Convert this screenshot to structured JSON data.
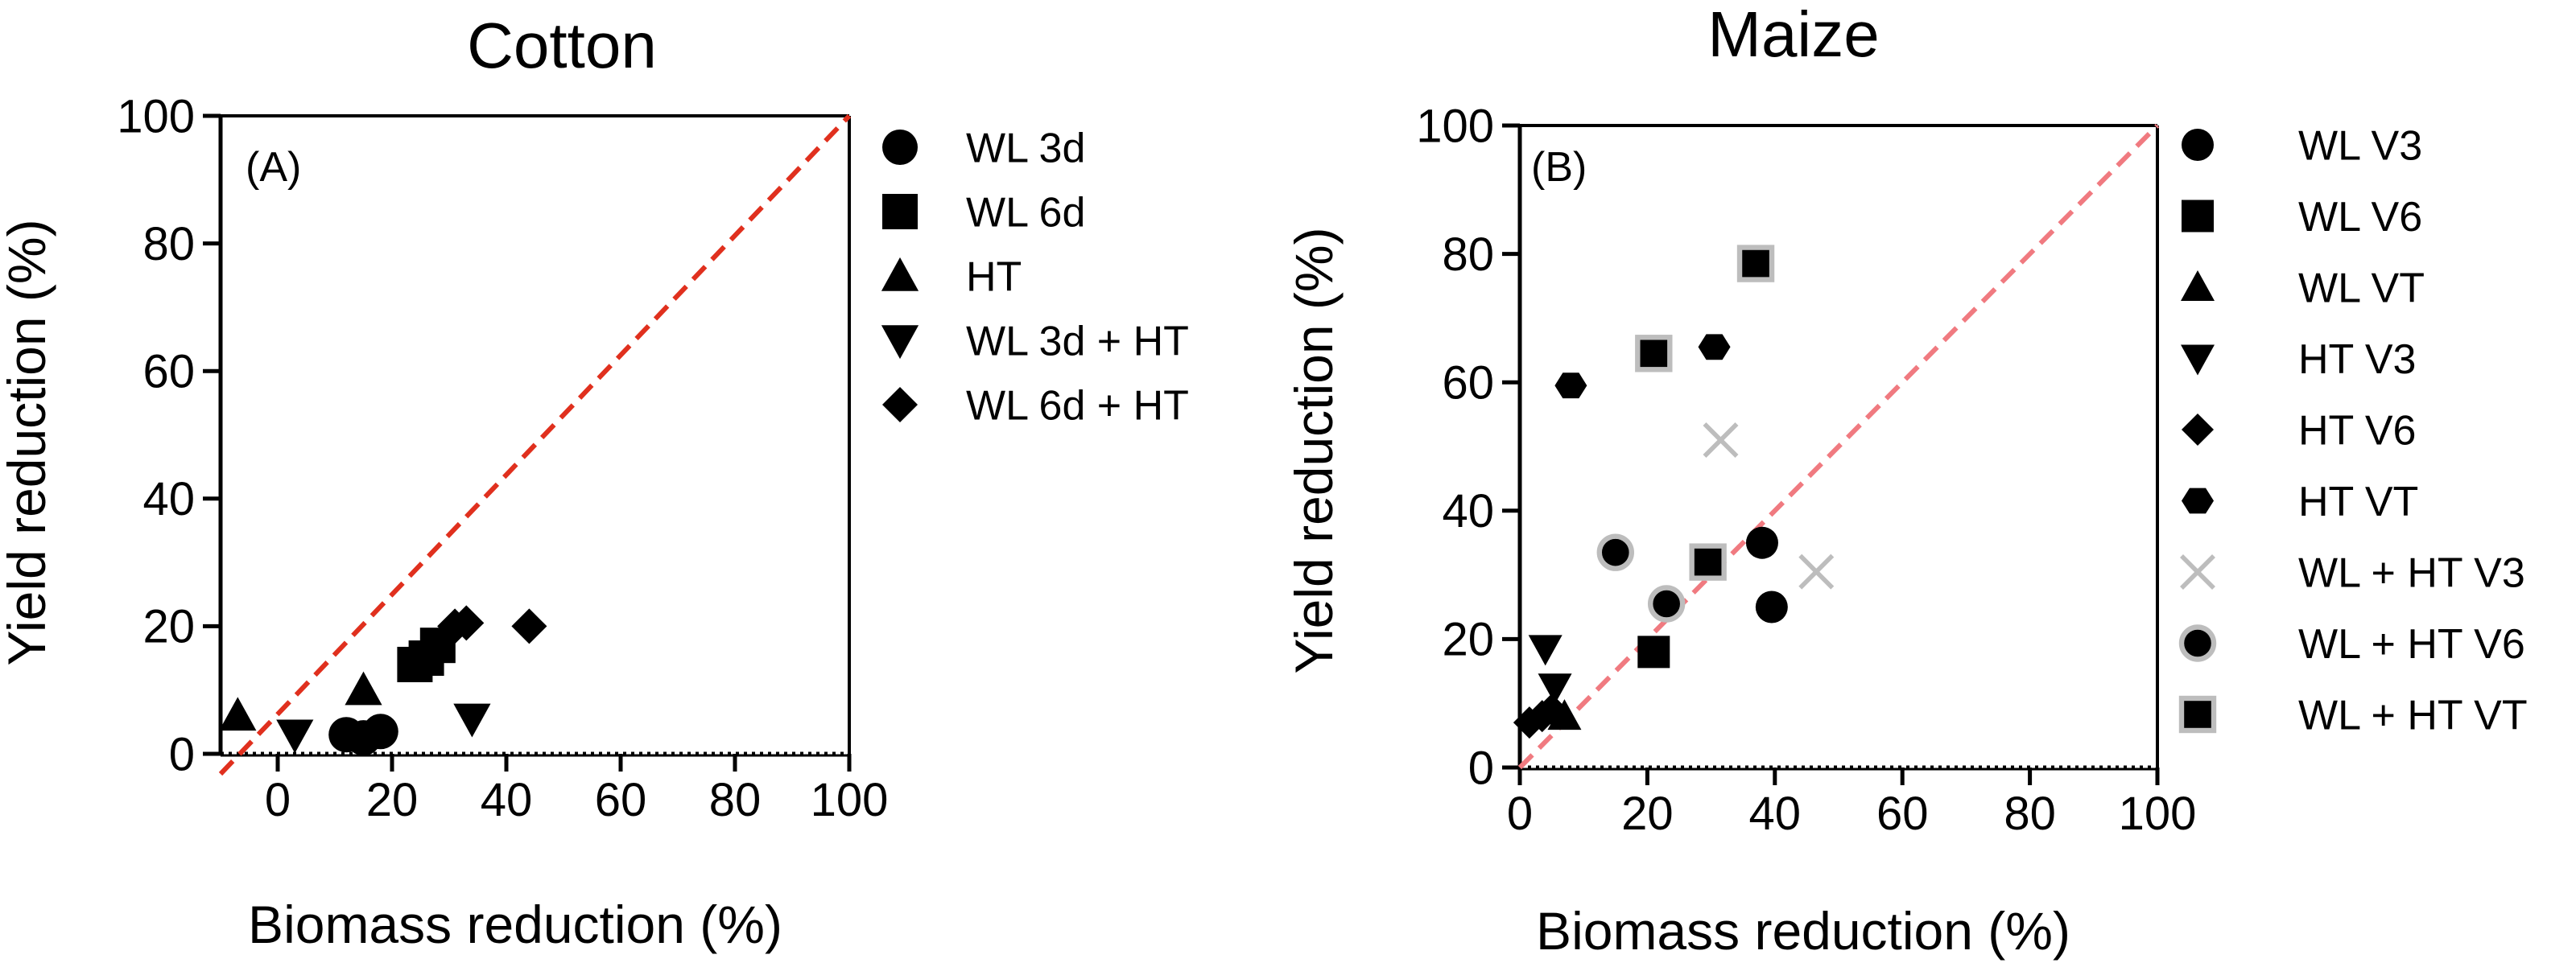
{
  "chart_data": [
    {
      "type": "scatter",
      "panel_label": "(A)",
      "title": "Cotton",
      "xlabel": "Biomass reduction (%)",
      "ylabel": "Yield reduction (%)",
      "xlim": [
        -10,
        100
      ],
      "ylim": [
        0,
        100
      ],
      "xticks": [
        0,
        20,
        40,
        60,
        80,
        100
      ],
      "yticks": [
        0,
        20,
        40,
        60,
        80,
        100
      ],
      "reference_line": "1:1 line",
      "grid": false,
      "legend_position": "right",
      "series": [
        {
          "name": "WL 3d",
          "marker": "circle",
          "fill": "#000000",
          "edge": "none",
          "points": [
            [
              12,
              3
            ],
            [
              15,
              2.5
            ],
            [
              18,
              3.5
            ]
          ]
        },
        {
          "name": "WL 6d",
          "marker": "square",
          "fill": "#000000",
          "edge": "none",
          "points": [
            [
              24,
              14
            ],
            [
              26,
              15
            ],
            [
              28,
              17
            ]
          ]
        },
        {
          "name": "HT",
          "marker": "triangle-up",
          "fill": "#000000",
          "edge": "none",
          "points": [
            [
              -7,
              6
            ],
            [
              15,
              10
            ]
          ]
        },
        {
          "name": "WL 3d + HT",
          "marker": "triangle-down",
          "fill": "#000000",
          "edge": "none",
          "points": [
            [
              3,
              3
            ],
            [
              34,
              5.5
            ]
          ]
        },
        {
          "name": "WL 6d + HT",
          "marker": "diamond",
          "fill": "#000000",
          "edge": "none",
          "points": [
            [
              31,
              20
            ],
            [
              33,
              20.5
            ],
            [
              44,
              20
            ]
          ]
        }
      ]
    },
    {
      "type": "scatter",
      "panel_label": "(B)",
      "title": "Maize",
      "xlabel": "Biomass reduction (%)",
      "ylabel": "Yield reduction (%)",
      "xlim": [
        0,
        100
      ],
      "ylim": [
        0,
        100
      ],
      "xticks": [
        0,
        20,
        40,
        60,
        80,
        100
      ],
      "yticks": [
        0,
        20,
        40,
        60,
        80,
        100
      ],
      "reference_line": "1:1 line",
      "grid": false,
      "legend_position": "right",
      "series": [
        {
          "name": "WL V3",
          "marker": "circle",
          "fill": "#000000",
          "edge": "none",
          "points": [
            [
              38,
              35
            ],
            [
              39.5,
              25
            ]
          ]
        },
        {
          "name": "WL V6",
          "marker": "square",
          "fill": "#000000",
          "edge": "none",
          "points": [
            [
              21,
              18
            ]
          ]
        },
        {
          "name": "WL VT",
          "marker": "triangle-up",
          "fill": "#000000",
          "edge": "none",
          "points": [
            [
              7,
              8
            ]
          ]
        },
        {
          "name": "HT V3",
          "marker": "triangle-down",
          "fill": "#000000",
          "edge": "none",
          "points": [
            [
              4,
              18.5
            ],
            [
              5.5,
              12.5
            ]
          ]
        },
        {
          "name": "HT V6",
          "marker": "diamond",
          "fill": "#000000",
          "edge": "none",
          "points": [
            [
              1.5,
              7
            ],
            [
              3.5,
              8
            ],
            [
              5,
              9
            ]
          ]
        },
        {
          "name": "HT VT",
          "marker": "hexagon",
          "fill": "#000000",
          "edge": "none",
          "points": [
            [
              8,
              59.5
            ],
            [
              30.5,
              65.5
            ]
          ]
        },
        {
          "name": "WL + HT V3",
          "marker": "x",
          "fill": "none",
          "edge": "#bdbdbd",
          "points": [
            [
              31.5,
              51
            ],
            [
              46.5,
              30.5
            ]
          ]
        },
        {
          "name": "WL + HT V6",
          "marker": "circle",
          "fill": "#000000",
          "edge": "#bdbdbd",
          "points": [
            [
              15,
              33.5
            ],
            [
              23,
              25.5
            ]
          ]
        },
        {
          "name": "WL + HT VT",
          "marker": "square",
          "fill": "#000000",
          "edge": "#bdbdbd",
          "points": [
            [
              21,
              64.5
            ],
            [
              37,
              78.5
            ],
            [
              29.5,
              32
            ]
          ]
        }
      ]
    }
  ],
  "colors": {
    "reference_line_A": "#e0301e",
    "reference_line_B": "#f07a80",
    "baseline_dotted": "#000000",
    "gray_edge": "#bdbdbd"
  }
}
